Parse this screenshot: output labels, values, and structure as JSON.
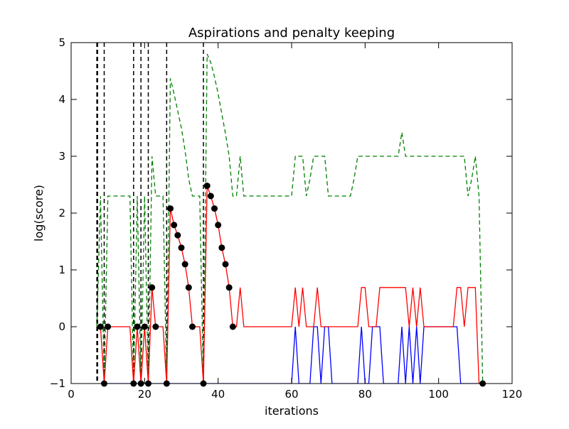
{
  "chart_data": {
    "type": "line",
    "title": "Aspirations and penalty keeping",
    "xlabel": "iterations",
    "ylabel": "log(score)",
    "xlim": [
      0,
      120
    ],
    "ylim": [
      -1,
      5
    ],
    "xticks": [
      0,
      20,
      40,
      60,
      80,
      100,
      120
    ],
    "xtick_labels": [
      "0",
      "20",
      "40",
      "60",
      "80",
      "100",
      "120"
    ],
    "yticks": [
      -1,
      0,
      1,
      2,
      3,
      4,
      5
    ],
    "ytick_labels": [
      "−1",
      "0",
      "1",
      "2",
      "3",
      "4",
      "5"
    ],
    "grid": false,
    "legend": "none",
    "colors": {
      "red_series": "#ff0000",
      "green_series": "#008000",
      "blue_series": "#0000ff",
      "vlines": "#000000",
      "markers": "#000000"
    },
    "series": [
      {
        "name": "red-solid",
        "style": "solid",
        "color": "#ff0000",
        "x": [
          7,
          8,
          9,
          10,
          11,
          12,
          13,
          14,
          15,
          16,
          17,
          18,
          19,
          20,
          21,
          22,
          23,
          24,
          25,
          26,
          27,
          28,
          29,
          30,
          31,
          32,
          33,
          34,
          35,
          36,
          37,
          38,
          39,
          40,
          41,
          42,
          43,
          44,
          45,
          46,
          47,
          48,
          60,
          61,
          62,
          63,
          64,
          65,
          66,
          67,
          68,
          69,
          70,
          71,
          72,
          73,
          74,
          75,
          76,
          77,
          78,
          79,
          80,
          81,
          82,
          83,
          84,
          85,
          86,
          87,
          88,
          89,
          90,
          91,
          92,
          93,
          94,
          95,
          96,
          97,
          98,
          99,
          100,
          101,
          102,
          103,
          104,
          105,
          106,
          107,
          108,
          109,
          110,
          111,
          112
        ],
        "y": [
          0,
          0,
          -1,
          0,
          0,
          0,
          0,
          0,
          0,
          0,
          -1,
          0,
          -1,
          0,
          -1,
          0.69,
          0,
          0,
          0,
          -1,
          2.08,
          1.79,
          1.61,
          1.39,
          1.1,
          0.69,
          0,
          0,
          0,
          -1,
          2.48,
          2.3,
          2.08,
          1.79,
          1.39,
          1.1,
          0.69,
          0,
          0,
          0.69,
          0,
          0,
          0,
          0.69,
          0,
          0.69,
          0,
          0,
          0,
          0.69,
          0,
          0,
          0,
          0,
          0,
          0,
          0,
          0,
          0,
          0,
          0,
          0.69,
          0.69,
          0,
          0,
          0,
          0.69,
          0.69,
          0.69,
          0.69,
          0.69,
          0.69,
          0.69,
          0.69,
          0,
          0.69,
          0,
          0.69,
          0,
          0,
          0,
          0,
          0,
          0,
          0,
          0,
          0,
          0.69,
          0.69,
          0,
          0.69,
          0.69,
          0.69,
          -1,
          -1
        ]
      },
      {
        "name": "green-dashed",
        "style": "dashed",
        "color": "#008000",
        "x": [
          7,
          8,
          9,
          10,
          11,
          12,
          13,
          14,
          15,
          16,
          17,
          18,
          19,
          20,
          21,
          22,
          23,
          24,
          25,
          26,
          27,
          28,
          29,
          30,
          31,
          32,
          33,
          34,
          35,
          36,
          37,
          38,
          39,
          40,
          41,
          42,
          43,
          44,
          45,
          46,
          47,
          48,
          60,
          61,
          62,
          63,
          64,
          65,
          66,
          67,
          68,
          69,
          70,
          71,
          72,
          73,
          74,
          75,
          76,
          77,
          78,
          79,
          80,
          81,
          82,
          83,
          84,
          85,
          86,
          87,
          88,
          89,
          90,
          91,
          92,
          93,
          94,
          95,
          96,
          97,
          98,
          99,
          100,
          101,
          102,
          103,
          104,
          105,
          106,
          107,
          108,
          109,
          110,
          111,
          112
        ],
        "y": [
          0,
          2.3,
          -1,
          2.3,
          2.3,
          2.3,
          2.3,
          2.3,
          2.3,
          2.3,
          -1,
          2.3,
          -1,
          2.3,
          -1,
          3.0,
          2.3,
          2.3,
          2.3,
          -1,
          4.37,
          4.1,
          3.8,
          3.5,
          3.1,
          2.6,
          2.3,
          2.3,
          2.3,
          -1,
          4.8,
          4.65,
          4.4,
          4.1,
          3.75,
          3.4,
          3.0,
          2.3,
          2.3,
          3.0,
          2.3,
          2.3,
          2.3,
          3.0,
          3.0,
          3.0,
          2.3,
          2.6,
          3.0,
          3.0,
          3.0,
          3.0,
          2.3,
          2.3,
          2.3,
          2.3,
          2.3,
          2.3,
          2.3,
          2.6,
          3.0,
          3.0,
          3.0,
          3.0,
          3.0,
          3.0,
          3.0,
          3.0,
          3.0,
          3.0,
          3.0,
          3.0,
          3.42,
          3.0,
          3.0,
          3.0,
          3.0,
          3.0,
          3.0,
          3.0,
          3.0,
          3.0,
          3.0,
          3.0,
          3.0,
          3.0,
          3.0,
          3.0,
          3.0,
          3.0,
          2.3,
          2.6,
          3.0,
          2.3,
          -1
        ]
      },
      {
        "name": "blue-solid",
        "style": "solid",
        "color": "#0000ff",
        "x": [
          9,
          60,
          61,
          62,
          63,
          64,
          65,
          66,
          67,
          68,
          69,
          70,
          71,
          72,
          73,
          74,
          75,
          76,
          77,
          78,
          79,
          80,
          81,
          82,
          83,
          84,
          85,
          86,
          87,
          88,
          89,
          90,
          91,
          92,
          93,
          94,
          95,
          96,
          97,
          98,
          99,
          100,
          101,
          102,
          103,
          104,
          105,
          106,
          107,
          108,
          109,
          110,
          111,
          112
        ],
        "y": [
          -1,
          -1,
          0,
          -1,
          -1,
          -1,
          -1,
          0,
          0,
          -1,
          0,
          0,
          -1,
          -1,
          -1,
          -1,
          -1,
          -1,
          -1,
          -1,
          0,
          -1,
          -1,
          0,
          0,
          0,
          -1,
          -1,
          -1,
          -1,
          -1,
          0,
          -1,
          0,
          -1,
          0,
          -1,
          0,
          0,
          0,
          0,
          0,
          0,
          0,
          0,
          0,
          0,
          -1,
          -1,
          -1,
          -1,
          -1,
          -1,
          -1
        ]
      }
    ],
    "markers": {
      "x": [
        8,
        9,
        10,
        17,
        18,
        19,
        20,
        21,
        22,
        23,
        26,
        27,
        28,
        29,
        30,
        31,
        32,
        33,
        36,
        37,
        38,
        39,
        40,
        41,
        42,
        43,
        44,
        112
      ],
      "y": [
        0,
        -1,
        0,
        -1,
        0,
        -1,
        0,
        -1,
        0.69,
        0,
        -1,
        2.08,
        1.79,
        1.61,
        1.39,
        1.1,
        0.69,
        0,
        -1,
        2.48,
        2.3,
        2.08,
        1.79,
        1.39,
        1.1,
        0.69,
        0,
        -1
      ]
    },
    "vlines": [
      7,
      7.2,
      9,
      17,
      19,
      21,
      26,
      36
    ]
  }
}
